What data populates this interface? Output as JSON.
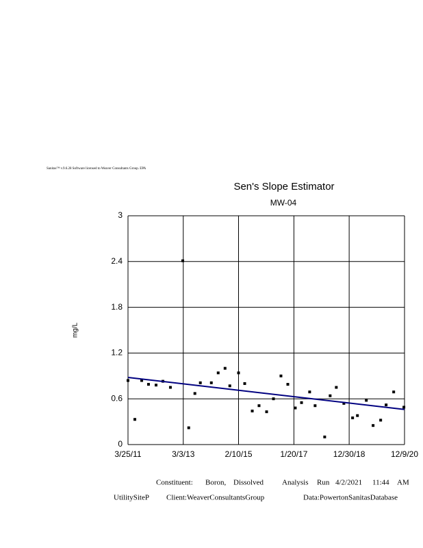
{
  "header": "Sanitas™   v.9.6.28   Software   licensed   to   Weaver   Consultants   Group.   EPA",
  "chart_data": {
    "type": "scatter",
    "title": "Sen's Slope Estimator",
    "subtitle": "MW-04",
    "y_label": "mg/L",
    "color": "#000000",
    "grid": true,
    "x": [
      "2011-03-25",
      "2011-06-21",
      "2011-09-17",
      "2011-12-13",
      "2012-03-19",
      "2012-06-15",
      "2012-09-19",
      "2013-02-24",
      "2013-05-12",
      "2013-07-30",
      "2013-10-08",
      "2014-02-26",
      "2014-05-25",
      "2014-08-21",
      "2014-10-21",
      "2015-02-10",
      "2015-04-30",
      "2015-08-05",
      "2015-10-31",
      "2016-02-05",
      "2016-05-03",
      "2016-08-07",
      "2016-11-03",
      "2017-02-07",
      "2017-04-28",
      "2017-08-10",
      "2017-10-19",
      "2018-02-19",
      "2018-04-30",
      "2018-07-18",
      "2018-10-23",
      "2019-02-12",
      "2019-04-15",
      "2019-08-07",
      "2019-11-02",
      "2020-02-07",
      "2020-04-17",
      "2020-07-23",
      "2020-12-01"
    ],
    "values": [
      0.84,
      0.33,
      0.84,
      0.79,
      0.78,
      0.83,
      0.75,
      2.41,
      0.22,
      0.67,
      0.81,
      0.81,
      0.94,
      1.0,
      0.77,
      0.94,
      0.8,
      0.44,
      0.51,
      0.43,
      0.6,
      0.9,
      0.79,
      0.48,
      0.55,
      0.69,
      0.51,
      0.1,
      0.64,
      0.75,
      0.54,
      0.35,
      0.38,
      0.58,
      0.25,
      0.32,
      0.52,
      0.69,
      0.49
    ],
    "trend": {
      "color": "#000080",
      "x": [
        "2011-03-25",
        "2020-12-09"
      ],
      "values": [
        0.88,
        0.46
      ]
    },
    "xlim": [
      "2011-03-25",
      "2020-12-09"
    ],
    "xticks": [
      {
        "value": "2011-03-25",
        "label": "3/25/11"
      },
      {
        "value": "2013-03-03",
        "label": "3/3/13"
      },
      {
        "value": "2015-02-10",
        "label": "2/10/15"
      },
      {
        "value": "2017-01-20",
        "label": "1/20/17"
      },
      {
        "value": "2018-12-30",
        "label": "12/30/18"
      },
      {
        "value": "2020-12-09",
        "label": "12/9/20"
      }
    ],
    "ylim": [
      0,
      3
    ],
    "yticks": [
      0,
      0.6,
      1.2,
      1.8,
      2.4,
      3
    ]
  },
  "footer": {
    "line1": [
      "Constituent:",
      "Boron,",
      "Dissolved",
      "Analysis",
      "Run",
      "4/2/2021",
      "11:44",
      "AM"
    ],
    "line2": [
      "UtilitySiteP",
      "Client:WeaverConsultantsGroup",
      "Data:PowertonSanitasDatabase"
    ]
  }
}
